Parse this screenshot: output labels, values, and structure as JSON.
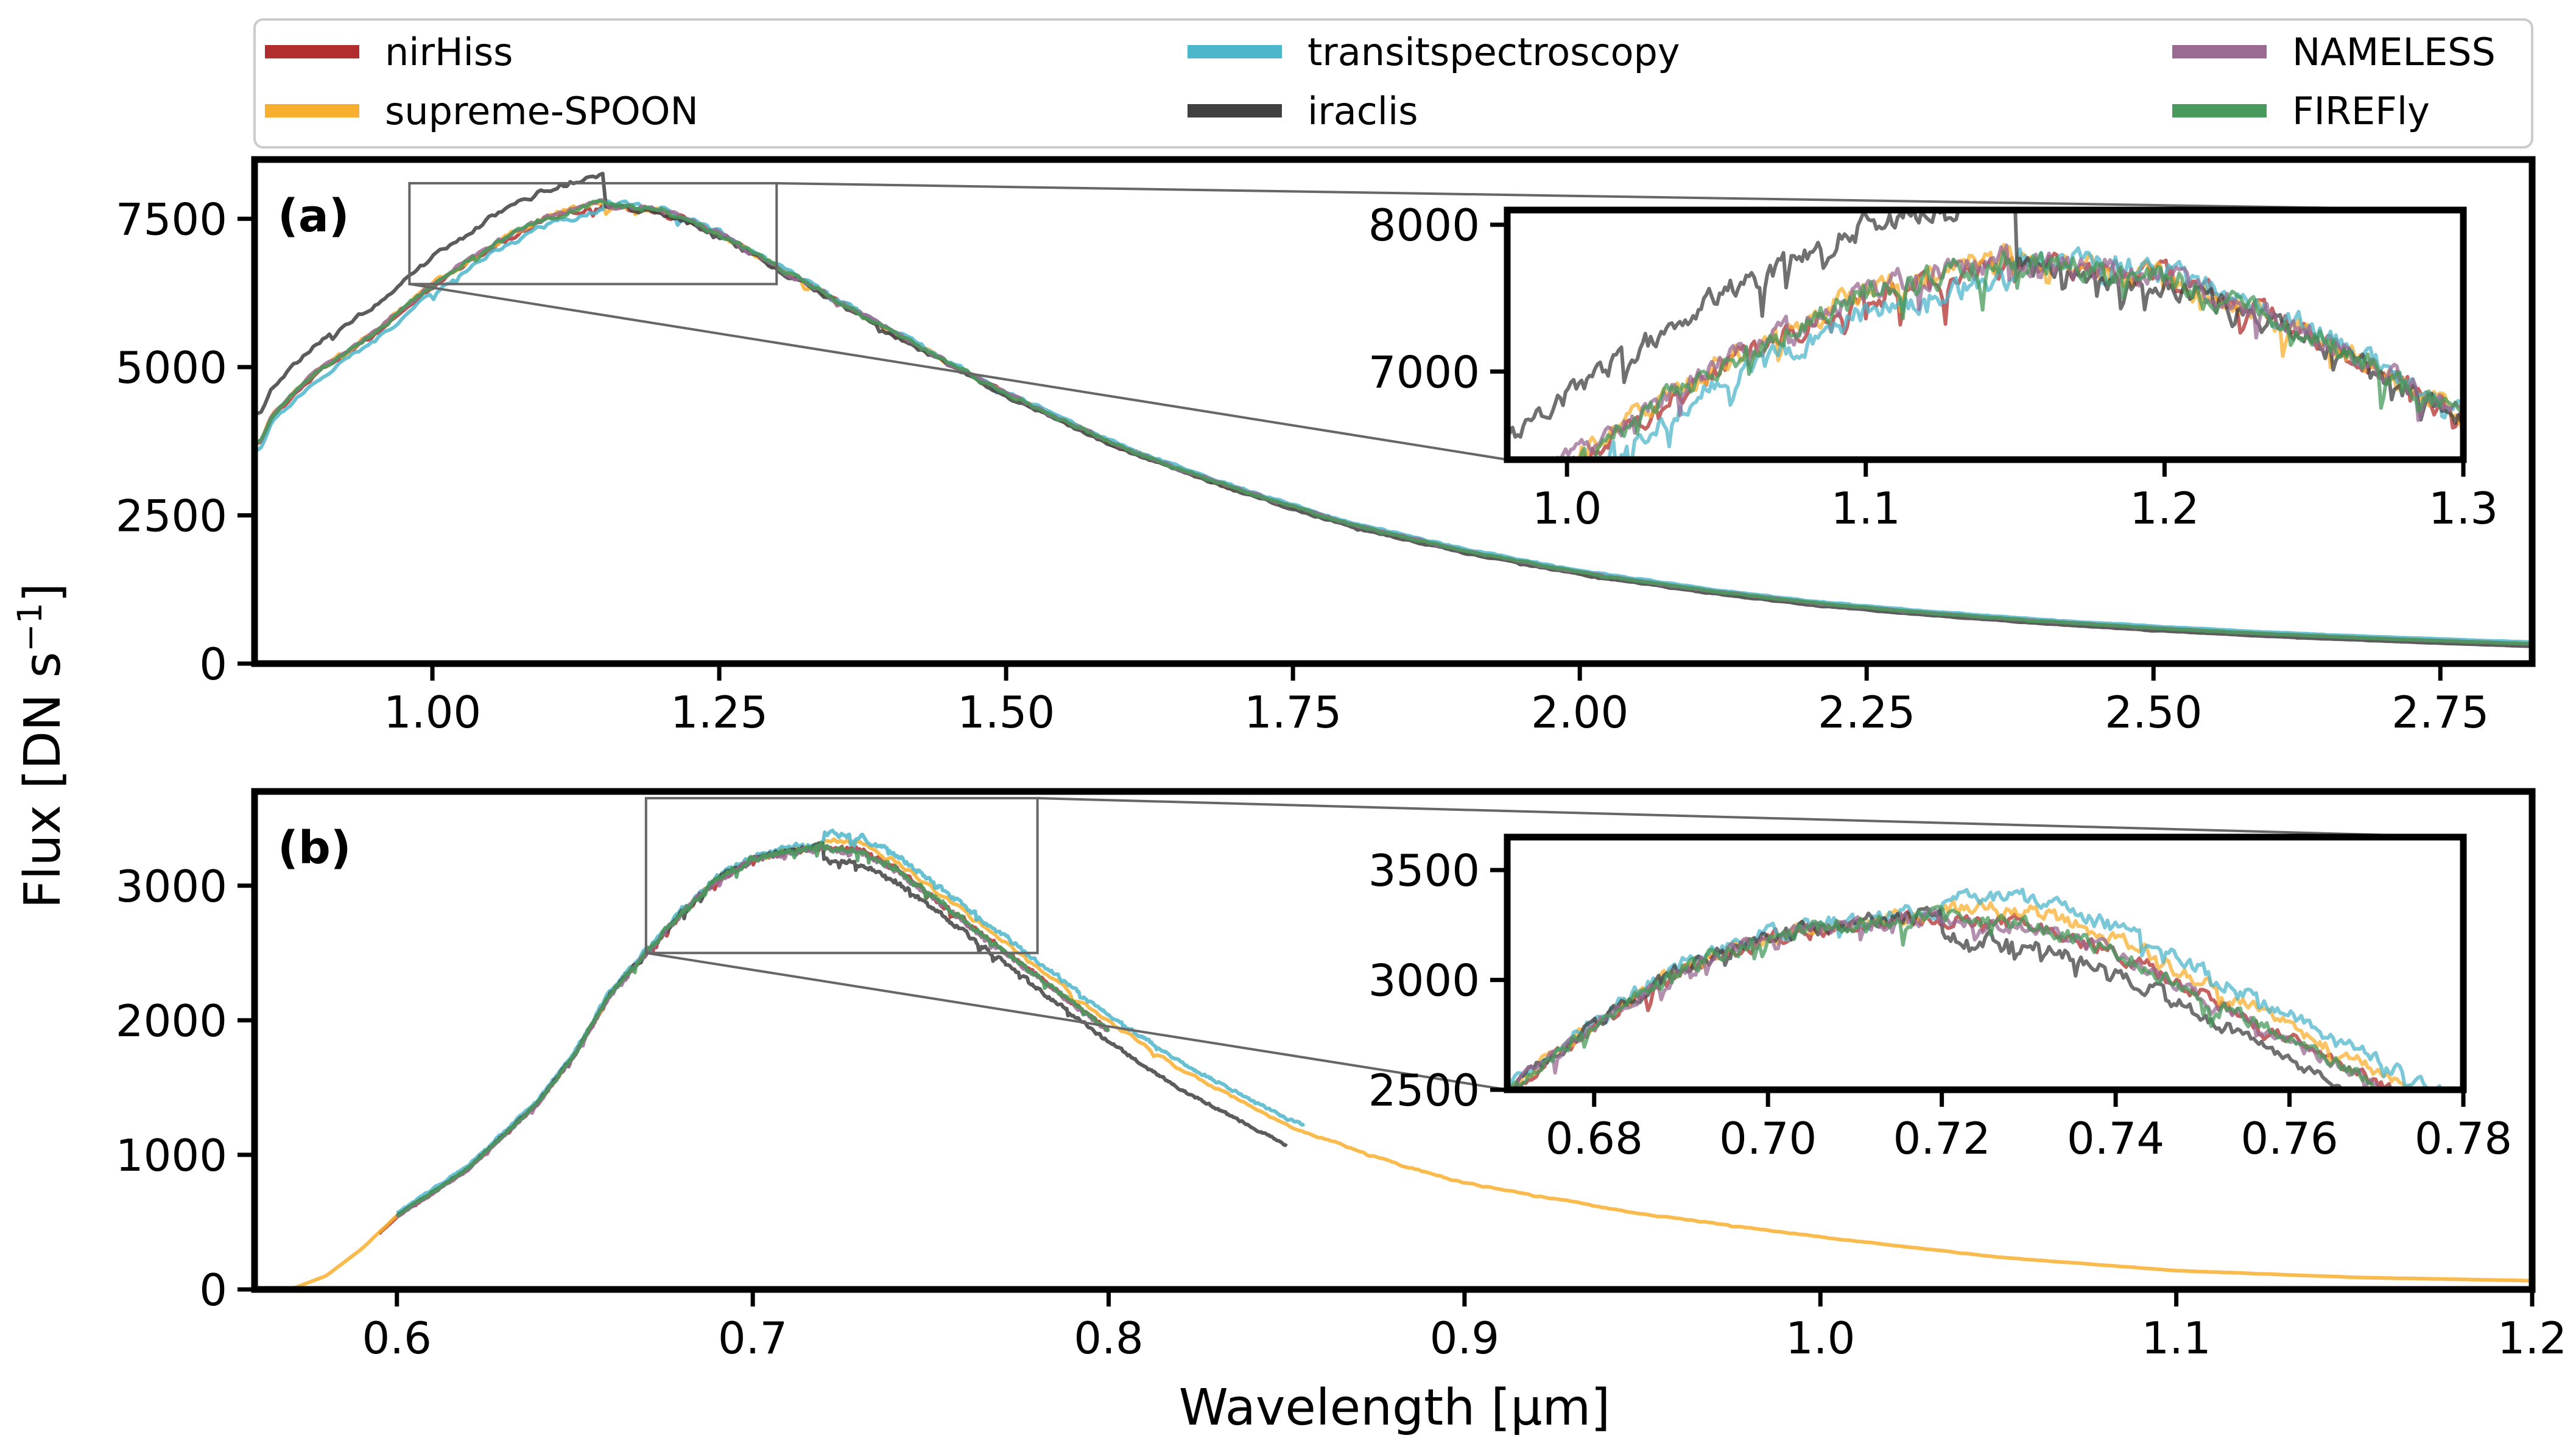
{
  "chart_data": {
    "type": "line",
    "ylabel": "Flux [DN s$^{-1}$]",
    "xlabel": "Wavelength [μm]",
    "legend": {
      "placement": "top",
      "entries": [
        {
          "name": "nirHiss",
          "color": "#B22D2D"
        },
        {
          "name": "supreme-SPOON",
          "color": "#F8AF2F"
        },
        {
          "name": "transitspectroscopy",
          "color": "#4DB6CB"
        },
        {
          "name": "iraclis",
          "color": "#404040"
        },
        {
          "name": "NAMELESS",
          "color": "#9A6A93"
        },
        {
          "name": "FIREFly",
          "color": "#479A5B"
        }
      ]
    },
    "panels": [
      {
        "label": "(a)",
        "xlim": [
          0.845,
          2.83
        ],
        "ylim": [
          0,
          8500
        ],
        "xticks": [
          1.0,
          1.25,
          1.5,
          1.75,
          2.0,
          2.25,
          2.5,
          2.75
        ],
        "xtick_labels": [
          "1.00",
          "1.25",
          "1.50",
          "1.75",
          "2.00",
          "2.25",
          "2.50",
          "2.75"
        ],
        "yticks": [
          0,
          2500,
          5000,
          7500
        ],
        "ytick_labels": [
          "0",
          "2500",
          "5000",
          "7500"
        ],
        "base_x": [
          0.85,
          0.86,
          0.88,
          0.9,
          0.95,
          1.0,
          1.05,
          1.1,
          1.15,
          1.2,
          1.25,
          1.3,
          1.4,
          1.5,
          1.6,
          1.7,
          1.8,
          1.9,
          2.0,
          2.1,
          2.2,
          2.3,
          2.4,
          2.5,
          2.6,
          2.7,
          2.83
        ],
        "base_y": [
          3700,
          4150,
          4550,
          4900,
          5550,
          6350,
          7000,
          7500,
          7750,
          7650,
          7250,
          6700,
          5600,
          4550,
          3650,
          2950,
          2350,
          1900,
          1540,
          1260,
          1030,
          860,
          720,
          600,
          500,
          420,
          330
        ],
        "series": [
          {
            "name": "nirHiss",
            "color": "#B22D2D",
            "offset_lo": 0,
            "offset_hi": 0
          },
          {
            "name": "supreme-SPOON",
            "color": "#F8AF2F",
            "offset_lo": 50,
            "offset_hi": 0
          },
          {
            "name": "transitspectroscopy",
            "color": "#4DB6CB",
            "offset_lo": -100,
            "offset_hi": 30
          },
          {
            "name": "iraclis",
            "color": "#404040",
            "offset_lo": 500,
            "offset_hi": -40
          },
          {
            "name": "NAMELESS",
            "color": "#9A6A93",
            "offset_lo": 50,
            "offset_hi": 0
          },
          {
            "name": "FIREFly",
            "color": "#479A5B",
            "offset_lo": 30,
            "offset_hi": 0
          }
        ],
        "inset": {
          "xlim": [
            0.98,
            1.3
          ],
          "ylim": [
            6400,
            8100
          ],
          "xticks": [
            1.0,
            1.1,
            1.2,
            1.3
          ],
          "xtick_labels": [
            "1.0",
            "1.1",
            "1.2",
            "1.3"
          ],
          "yticks": [
            7000,
            8000
          ],
          "ytick_labels": [
            "7000",
            "8000"
          ]
        }
      },
      {
        "label": "(b)",
        "xlim": [
          0.56,
          1.2
        ],
        "ylim": [
          0,
          3700
        ],
        "xticks": [
          0.6,
          0.7,
          0.8,
          0.9,
          1.0,
          1.1,
          1.2
        ],
        "xtick_labels": [
          "0.6",
          "0.7",
          "0.8",
          "0.9",
          "1.0",
          "1.1",
          "1.2"
        ],
        "yticks": [
          0,
          1000,
          2000,
          3000
        ],
        "ytick_labels": [
          "0",
          "1000",
          "2000",
          "3000"
        ],
        "base_x": [
          0.56,
          0.57,
          0.58,
          0.59,
          0.6,
          0.62,
          0.64,
          0.65,
          0.66,
          0.67,
          0.68,
          0.69,
          0.7,
          0.71,
          0.72,
          0.73,
          0.74,
          0.75,
          0.76,
          0.77,
          0.78,
          0.8,
          0.82,
          0.85,
          0.88,
          0.9,
          0.95,
          1.0,
          1.05,
          1.1,
          1.15,
          1.2
        ],
        "base_y": [
          0,
          0,
          100,
          300,
          550,
          900,
          1400,
          1750,
          2200,
          2500,
          2800,
          3050,
          3200,
          3260,
          3300,
          3280,
          3150,
          2950,
          2750,
          2550,
          2350,
          1950,
          1600,
          1180,
          900,
          750,
          520,
          350,
          200,
          100,
          50,
          25
        ],
        "series": [
          {
            "name": "nirHiss",
            "color": "#B22D2D",
            "offset_lo": -10,
            "offset_hi": -20,
            "xmin": 0.595,
            "xmax": 0.8
          },
          {
            "name": "supreme-SPOON",
            "color": "#F8AF2F",
            "offset_lo": 0,
            "offset_hi": 40,
            "xmin": 0.565,
            "xmax": 1.2
          },
          {
            "name": "transitspectroscopy",
            "color": "#4DB6CB",
            "offset_lo": 20,
            "offset_hi": 90,
            "xmin": 0.6,
            "xmax": 0.855
          },
          {
            "name": "iraclis",
            "color": "#404040",
            "offset_lo": 0,
            "offset_hi": -110,
            "xmin": 0.6,
            "xmax": 0.85
          },
          {
            "name": "NAMELESS",
            "color": "#9A6A93",
            "offset_lo": -10,
            "offset_hi": -30,
            "xmin": 0.6,
            "xmax": 0.8
          },
          {
            "name": "FIREFly",
            "color": "#479A5B",
            "offset_lo": 0,
            "offset_hi": -20,
            "xmin": 0.6,
            "xmax": 0.8
          }
        ],
        "inset": {
          "xlim": [
            0.67,
            0.78
          ],
          "ylim": [
            2500,
            3650
          ],
          "xticks": [
            0.68,
            0.7,
            0.72,
            0.74,
            0.76,
            0.78
          ],
          "xtick_labels": [
            "0.68",
            "0.70",
            "0.72",
            "0.74",
            "0.76",
            "0.78"
          ],
          "yticks": [
            2500,
            3000,
            3500
          ],
          "ytick_labels": [
            "2500",
            "3000",
            "3500"
          ]
        }
      }
    ]
  }
}
